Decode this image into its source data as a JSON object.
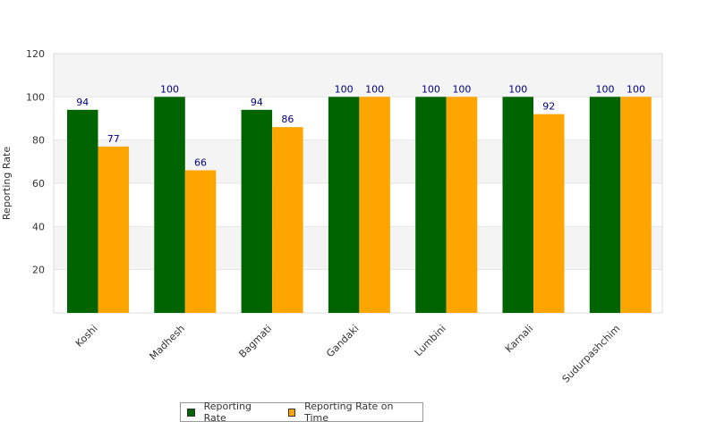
{
  "chart_data": {
    "type": "bar",
    "title": "",
    "xlabel": "",
    "ylabel": "Reporting Rate",
    "ylim": [
      0,
      120
    ],
    "yticks": [
      20,
      40,
      60,
      80,
      100,
      120
    ],
    "categories": [
      "Koshi",
      "Madhesh",
      "Bagmati",
      "Gandaki",
      "Lumbini",
      "Karnali",
      "Sudurpashchim"
    ],
    "series": [
      {
        "name": "Reporting Rate",
        "color": "#006400",
        "values": [
          94,
          100,
          94,
          100,
          100,
          100,
          100
        ]
      },
      {
        "name": "Reporting Rate on Time",
        "color": "#FFA500",
        "values": [
          77,
          66,
          86,
          100,
          100,
          92,
          100
        ]
      }
    ],
    "legend_position": "bottom",
    "grid": true
  }
}
